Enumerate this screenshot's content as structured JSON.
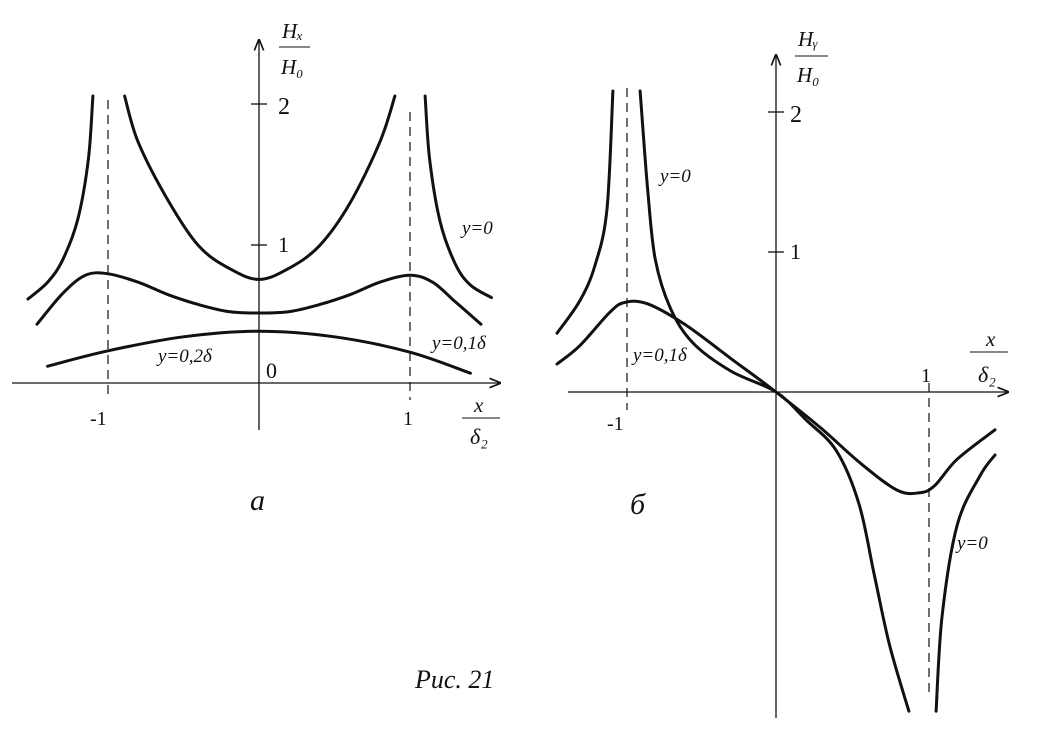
{
  "figure_caption": "Рис. 21",
  "chart_data": [
    {
      "type": "line",
      "panel_label": "a",
      "x_label": {
        "num": "x",
        "den": "δ₂"
      },
      "y_label": {
        "num": "Hₓ",
        "den": "H₀"
      },
      "x_ticks": [
        "-1",
        "1"
      ],
      "y_ticks": [
        "2",
        "1"
      ],
      "origin_label": "0",
      "xlim": [
        -1.62,
        1.62
      ],
      "ylim": [
        -0.1,
        2.4
      ],
      "series": [
        {
          "name": "y=0",
          "segments": [
            [
              [
                -1.53,
                0.6
              ],
              [
                -1.4,
                0.72
              ],
              [
                -1.3,
                0.88
              ],
              [
                -1.2,
                1.17
              ],
              [
                -1.13,
                1.6
              ],
              [
                -1.1,
                2.05
              ]
            ],
            [
              [
                -0.89,
                2.05
              ],
              [
                -0.8,
                1.72
              ],
              [
                -0.6,
                1.3
              ],
              [
                -0.4,
                0.98
              ],
              [
                -0.2,
                0.82
              ],
              [
                0,
                0.74
              ],
              [
                0.2,
                0.82
              ],
              [
                0.4,
                0.98
              ],
              [
                0.6,
                1.28
              ],
              [
                0.8,
                1.72
              ],
              [
                0.9,
                2.05
              ]
            ],
            [
              [
                1.1,
                2.05
              ],
              [
                1.13,
                1.6
              ],
              [
                1.2,
                1.15
              ],
              [
                1.3,
                0.85
              ],
              [
                1.4,
                0.7
              ],
              [
                1.54,
                0.61
              ]
            ]
          ]
        },
        {
          "name": "y=0,1δ",
          "segments": [
            [
              [
                -1.47,
                0.42
              ],
              [
                -1.3,
                0.64
              ],
              [
                -1.15,
                0.77
              ],
              [
                -1,
                0.78
              ],
              [
                -0.8,
                0.72
              ],
              [
                -0.6,
                0.63
              ],
              [
                -0.4,
                0.56
              ],
              [
                -0.2,
                0.51
              ],
              [
                0,
                0.5
              ],
              [
                0.2,
                0.51
              ],
              [
                0.4,
                0.56
              ],
              [
                0.6,
                0.63
              ],
              [
                0.8,
                0.72
              ],
              [
                1,
                0.77
              ],
              [
                1.15,
                0.72
              ],
              [
                1.3,
                0.58
              ],
              [
                1.47,
                0.42
              ]
            ]
          ]
        },
        {
          "name": "y=0,2δ",
          "segments": [
            [
              [
                -1.4,
                0.12
              ],
              [
                -1,
                0.23
              ],
              [
                -0.5,
                0.33
              ],
              [
                0,
                0.37
              ],
              [
                0.5,
                0.33
              ],
              [
                1,
                0.22
              ],
              [
                1.4,
                0.07
              ]
            ]
          ]
        }
      ],
      "annotations": [
        "y=0",
        "y=0,1δ",
        "y=0,2δ"
      ]
    },
    {
      "type": "line",
      "panel_label": "б",
      "x_label": {
        "num": "x",
        "den": "δ₂"
      },
      "y_label": {
        "num": "Hᵧ",
        "den": "H₀"
      },
      "x_ticks": [
        "-1",
        "1"
      ],
      "y_ticks": [
        "2",
        "1"
      ],
      "xlim": [
        -1.45,
        1.6
      ],
      "ylim": [
        -2.3,
        2.4
      ],
      "series": [
        {
          "name": "y=0",
          "segments": [
            [
              [
                -1.45,
                0.42
              ],
              [
                -1.3,
                0.65
              ],
              [
                -1.2,
                0.9
              ],
              [
                -1.12,
                1.3
              ],
              [
                -1.08,
                2.15
              ]
            ],
            [
              [
                -0.9,
                2.15
              ],
              [
                -0.85,
                1.45
              ],
              [
                -0.8,
                0.95
              ],
              [
                -0.7,
                0.6
              ],
              [
                -0.55,
                0.35
              ],
              [
                -0.3,
                0.15
              ],
              [
                0,
                0
              ],
              [
                0.2,
                -0.2
              ],
              [
                0.4,
                -0.42
              ],
              [
                0.55,
                -0.8
              ],
              [
                0.65,
                -1.3
              ],
              [
                0.75,
                -1.8
              ],
              [
                0.88,
                -2.28
              ]
            ],
            [
              [
                1.06,
                -2.28
              ],
              [
                1.1,
                -1.6
              ],
              [
                1.2,
                -0.95
              ],
              [
                1.35,
                -0.6
              ],
              [
                1.45,
                -0.45
              ]
            ]
          ]
        },
        {
          "name": "y=0,1δ",
          "segments": [
            [
              [
                -1.45,
                0.2
              ],
              [
                -1.3,
                0.33
              ],
              [
                -1.1,
                0.57
              ],
              [
                -1,
                0.64
              ],
              [
                -0.85,
                0.63
              ],
              [
                -0.6,
                0.48
              ],
              [
                -0.3,
                0.24
              ],
              [
                0,
                0
              ],
              [
                0.3,
                -0.26
              ],
              [
                0.55,
                -0.5
              ],
              [
                0.8,
                -0.7
              ],
              [
                0.95,
                -0.72
              ],
              [
                1.05,
                -0.67
              ],
              [
                1.2,
                -0.48
              ],
              [
                1.45,
                -0.27
              ]
            ]
          ]
        }
      ],
      "annotations": [
        "y=0",
        "y=0,1δ",
        "y=0"
      ]
    }
  ]
}
